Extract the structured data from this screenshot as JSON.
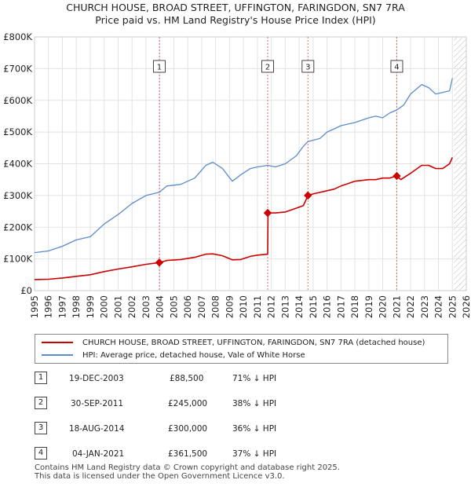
{
  "header": {
    "title_line1": "CHURCH HOUSE, BROAD STREET, UFFINGTON, FARINGDON, SN7 7RA",
    "title_line2": "Price paid vs. HM Land Registry's House Price Index (HPI)"
  },
  "colors": {
    "price": "#cc0000",
    "hpi": "#5b8ccc",
    "marker_line": "#e06c6c",
    "grid": "#e2e2e2"
  },
  "legend": {
    "price_label": "CHURCH HOUSE, BROAD STREET, UFFINGTON, FARINGDON, SN7 7RA (detached house)",
    "hpi_label": "HPI: Average price, detached house, Vale of White Horse"
  },
  "sales": [
    {
      "num": "1",
      "date": "19-DEC-2003",
      "price": "£88,500",
      "hpi": "71% ↓ HPI"
    },
    {
      "num": "2",
      "date": "30-SEP-2011",
      "price": "£245,000",
      "hpi": "38% ↓ HPI"
    },
    {
      "num": "3",
      "date": "18-AUG-2014",
      "price": "£300,000",
      "hpi": "36% ↓ HPI"
    },
    {
      "num": "4",
      "date": "04-JAN-2021",
      "price": "£361,500",
      "hpi": "37% ↓ HPI"
    }
  ],
  "footer": {
    "line1": "Contains HM Land Registry data © Crown copyright and database right 2025.",
    "line2": "This data is licensed under the Open Government Licence v3.0."
  },
  "chart_data": {
    "type": "line",
    "xlim": [
      1995,
      2026
    ],
    "ylim": [
      0,
      800000
    ],
    "xticks": [
      1995,
      1996,
      1997,
      1998,
      1999,
      2000,
      2001,
      2002,
      2003,
      2004,
      2005,
      2006,
      2007,
      2008,
      2009,
      2010,
      2011,
      2012,
      2013,
      2014,
      2015,
      2016,
      2017,
      2018,
      2019,
      2020,
      2021,
      2022,
      2023,
      2024,
      2025,
      2026
    ],
    "yticks": [
      {
        "value": 0,
        "label": "£0"
      },
      {
        "value": 100000,
        "label": "£100K"
      },
      {
        "value": 200000,
        "label": "£200K"
      },
      {
        "value": 300000,
        "label": "£300K"
      },
      {
        "value": 400000,
        "label": "£400K"
      },
      {
        "value": 500000,
        "label": "£500K"
      },
      {
        "value": 600000,
        "label": "£600K"
      },
      {
        "value": 700000,
        "label": "£700K"
      },
      {
        "value": 800000,
        "label": "£800K"
      }
    ],
    "projection_start": 2025.1,
    "series": [
      {
        "name": "CHURCH HOUSE, BROAD STREET, UFFINGTON, FARINGDON, SN7 7RA (detached house)",
        "x": [
          1995.0,
          1996.0,
          1997.0,
          1998.0,
          1999.0,
          2000.0,
          2001.0,
          2002.0,
          2003.0,
          2003.96,
          2004.5,
          2005.5,
          2006.5,
          2007.3,
          2007.8,
          2008.5,
          2009.2,
          2009.8,
          2010.5,
          2011.0,
          2011.74,
          2011.76,
          2012.3,
          2013.0,
          2013.8,
          2014.3,
          2014.63,
          2015.0,
          2016.0,
          2016.5,
          2017.0,
          2018.0,
          2019.0,
          2019.5,
          2020.0,
          2020.5,
          2021.01,
          2021.3,
          2022.0,
          2022.8,
          2023.3,
          2023.8,
          2024.3,
          2024.8,
          2025.0
        ],
        "y": [
          35000,
          36000,
          40000,
          45000,
          50000,
          60000,
          68000,
          75000,
          83000,
          88500,
          95000,
          98000,
          105000,
          115000,
          116000,
          110000,
          97000,
          98000,
          108000,
          112000,
          115000,
          245000,
          245000,
          248000,
          260000,
          268000,
          300000,
          305000,
          315000,
          320000,
          330000,
          345000,
          350000,
          350000,
          355000,
          355000,
          361500,
          350000,
          370000,
          395000,
          395000,
          385000,
          385000,
          400000,
          420000
        ]
      },
      {
        "name": "HPI: Average price, detached house, Vale of White Horse",
        "x": [
          1995.0,
          1996.0,
          1997.0,
          1998.0,
          1999.0,
          2000.0,
          2001.0,
          2002.0,
          2003.0,
          2003.96,
          2004.5,
          2005.5,
          2006.5,
          2007.3,
          2007.8,
          2008.5,
          2009.2,
          2009.8,
          2010.5,
          2011.0,
          2011.74,
          2012.3,
          2013.0,
          2013.8,
          2014.3,
          2014.63,
          2015.5,
          2016.0,
          2016.5,
          2017.0,
          2018.0,
          2019.0,
          2019.5,
          2020.0,
          2020.5,
          2021.01,
          2021.5,
          2022.0,
          2022.8,
          2023.3,
          2023.8,
          2024.3,
          2024.8,
          2025.0
        ],
        "y": [
          120000,
          125000,
          140000,
          160000,
          170000,
          210000,
          240000,
          275000,
          300000,
          310000,
          330000,
          335000,
          355000,
          395000,
          405000,
          385000,
          345000,
          365000,
          385000,
          390000,
          395000,
          390000,
          400000,
          425000,
          455000,
          470000,
          480000,
          500000,
          510000,
          520000,
          530000,
          545000,
          550000,
          545000,
          560000,
          570000,
          585000,
          620000,
          650000,
          640000,
          620000,
          625000,
          630000,
          670000
        ]
      }
    ],
    "transactions": [
      {
        "label": "1",
        "x": 2003.96,
        "y": 88500
      },
      {
        "label": "2",
        "x": 2011.74,
        "y": 245000
      },
      {
        "label": "3",
        "x": 2014.63,
        "y": 300000
      },
      {
        "label": "4",
        "x": 2021.01,
        "y": 361500
      }
    ]
  }
}
